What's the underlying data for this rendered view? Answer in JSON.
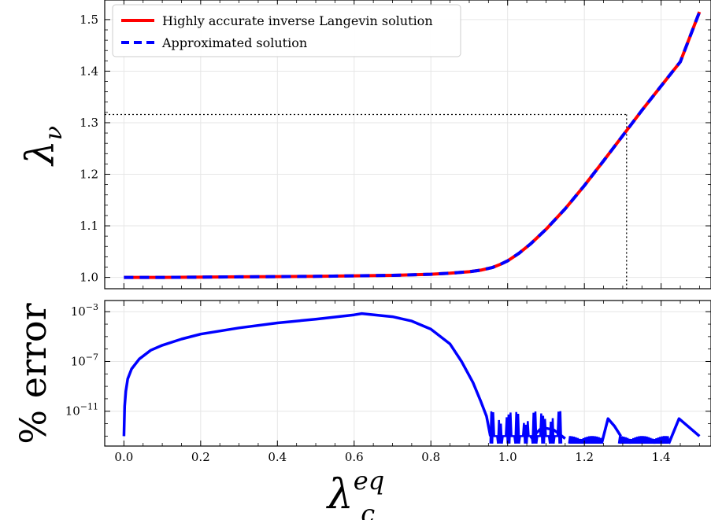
{
  "chart_data": [
    {
      "type": "line",
      "ylabel_symbol": "λ",
      "ylabel_sub": "ν",
      "xlim": [
        -0.05,
        1.53
      ],
      "ylim": [
        0.978,
        1.538
      ],
      "grid": true,
      "legend": "top-left",
      "yticks": [
        1.0,
        1.1,
        1.2,
        1.3,
        1.4,
        1.5
      ],
      "ytick_labels": [
        "1.0",
        "1.1",
        "1.2",
        "1.3",
        "1.4",
        "1.5"
      ],
      "series": [
        {
          "name": "Highly accurate inverse Langevin solution",
          "color": "#ff0000",
          "style": "solid",
          "x": [
            0.0,
            0.1,
            0.2,
            0.3,
            0.4,
            0.5,
            0.6,
            0.7,
            0.8,
            0.85,
            0.9,
            0.93,
            0.96,
            0.98,
            1.0,
            1.03,
            1.06,
            1.1,
            1.15,
            1.2,
            1.25,
            1.3,
            1.35,
            1.4,
            1.45,
            1.5
          ],
          "y": [
            1.0,
            1.0,
            1.0005,
            1.001,
            1.0015,
            1.002,
            1.003,
            1.004,
            1.006,
            1.008,
            1.011,
            1.014,
            1.019,
            1.025,
            1.032,
            1.047,
            1.065,
            1.093,
            1.133,
            1.178,
            1.226,
            1.275,
            1.324,
            1.371,
            1.418,
            1.515
          ]
        },
        {
          "name": "Approximated solution",
          "color": "#0000ff",
          "style": "dashed",
          "x": [
            0.0,
            0.1,
            0.2,
            0.3,
            0.4,
            0.5,
            0.6,
            0.7,
            0.8,
            0.85,
            0.9,
            0.93,
            0.96,
            0.98,
            1.0,
            1.03,
            1.06,
            1.1,
            1.15,
            1.2,
            1.25,
            1.3,
            1.35,
            1.4,
            1.45,
            1.5
          ],
          "y": [
            1.0,
            1.0,
            1.0005,
            1.001,
            1.0015,
            1.002,
            1.003,
            1.004,
            1.006,
            1.008,
            1.011,
            1.014,
            1.019,
            1.025,
            1.032,
            1.047,
            1.065,
            1.093,
            1.133,
            1.178,
            1.226,
            1.275,
            1.324,
            1.371,
            1.418,
            1.515
          ]
        }
      ],
      "reference_point": {
        "x": 1.31,
        "y": 1.316
      }
    },
    {
      "type": "line",
      "ylabel": "% error",
      "xlabel_symbol": "λ",
      "xlabel_sub": "c",
      "xlabel_sup": "eq",
      "xlim": [
        -0.05,
        1.53
      ],
      "yscale": "log",
      "ylim_log10": [
        -13.8,
        -2.1
      ],
      "grid": true,
      "xticks": [
        0.0,
        0.2,
        0.4,
        0.6,
        0.8,
        1.0,
        1.2,
        1.4
      ],
      "xtick_labels": [
        "0.0",
        "0.2",
        "0.4",
        "0.6",
        "0.8",
        "1.0",
        "1.2",
        "1.4"
      ],
      "yticks_log10": [
        -3,
        -7,
        -11
      ],
      "ytick_labels": [
        {
          "base": "10",
          "exp": "−3"
        },
        {
          "base": "10",
          "exp": "−7"
        },
        {
          "base": "10",
          "exp": "−11"
        }
      ],
      "series": [
        {
          "color": "#0000ff",
          "x": [
            0.0,
            0.002,
            0.005,
            0.01,
            0.02,
            0.04,
            0.07,
            0.1,
            0.15,
            0.2,
            0.3,
            0.4,
            0.5,
            0.6,
            0.62,
            0.7,
            0.75,
            0.8,
            0.85,
            0.88,
            0.91,
            0.93,
            0.945,
            0.955
          ],
          "log10_y": [
            -13.0,
            -10.6,
            -9.4,
            -8.4,
            -7.6,
            -6.8,
            -6.1,
            -5.7,
            -5.2,
            -4.8,
            -4.3,
            -3.9,
            -3.6,
            -3.25,
            -3.15,
            -3.4,
            -3.75,
            -4.4,
            -5.6,
            -7.0,
            -8.7,
            -10.2,
            -11.4,
            -13.0
          ]
        }
      ],
      "noise_segments": [
        {
          "x": [
            0.955,
            1.14
          ],
          "log10_range": [
            -13.6,
            -11.0
          ]
        },
        {
          "x": [
            1.16,
            1.245
          ],
          "log10_range": [
            -13.6,
            -13.0
          ]
        },
        {
          "x": [
            1.29,
            1.42
          ],
          "log10_range": [
            -13.6,
            -13.0
          ]
        }
      ],
      "humps": [
        {
          "x": [
            1.06,
            1.15
          ],
          "log10_y": [
            -13.2,
            -12.3,
            -12.5,
            -13.2
          ]
        },
        {
          "x": [
            1.245,
            1.295
          ],
          "log10_y": [
            -13.6,
            -11.6,
            -12.2,
            -13.0
          ]
        },
        {
          "x": [
            1.42,
            1.5
          ],
          "log10_y": [
            -13.6,
            -11.6,
            -12.3,
            -13.0
          ]
        }
      ]
    }
  ]
}
